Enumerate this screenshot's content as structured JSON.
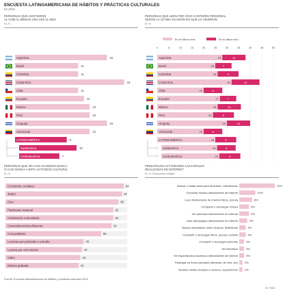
{
  "header": {
    "title": "ENCUESTA LATINOAMERICANA DE HÁBITOS Y PRÁCTICAS CULTURALES",
    "subtitle": "En 2013"
  },
  "colors": {
    "light_bar": "#efc3d1",
    "dark_bar": "#d72a6b",
    "track": "#f1f1f1",
    "text": "#444444"
  },
  "panel1": {
    "title_l1": "PERSONAS QUE ASISTIERON",
    "title_l2": "AL CINE AL MENOS UNA VEZ AL MES",
    "unit": "En %"
  },
  "panel2": {
    "title_l1": "PERSONAS QUE LEEN POR OCIO O INTERÉS PERSONAL,",
    "title_l2": "SEGÚN LA ÚLTIMA OCASIÓN EN QUE LO HICIERON",
    "unit": "En %",
    "legend_a": "En el último mes",
    "legend_b": "En el último año"
  },
  "panel3": {
    "title_l1": "PERSONAS QUE NO HAN ACCEDIDO NUNCA",
    "title_l2": "O CASI NUNCA A ESTA ACTIVIDAD CULTURAL",
    "unit": "En %"
  },
  "panel4": {
    "title_l1": "PRINCIPALES ACTIVIDADES CULTURALES",
    "title_l2": "REALIZADAS EN INTERNET",
    "unit": "En %. Respuesta múltiple"
  },
  "footer": {
    "source": "Fuente: Encuesta latinoamericana de hábitos y prácticas culturales 2013.",
    "credit": "EL PAÍS"
  },
  "chart_data": [
    {
      "type": "bar",
      "title": "PERSONAS QUE ASISTIERON AL CINE AL MENOS UNA VEZ AL MES",
      "unit": "En %",
      "categories": [
        "Argentina",
        "Brasil",
        "Colombia",
        "Costa Rica",
        "Chile",
        "Ecuador",
        "México",
        "Perú",
        "Uruguay",
        "Venezuela",
        "LATINOAMÉRICA",
        "Sudamérica",
        "Centroamérica"
      ],
      "values": [
        16,
        11,
        11,
        19,
        11,
        12,
        13,
        13,
        16,
        13,
        9,
        10,
        7
      ],
      "highlight": [
        "LATINOAMÉRICA",
        "Sudamérica",
        "Centroamérica"
      ],
      "xlim": [
        0,
        20
      ]
    },
    {
      "type": "bar",
      "stacked": true,
      "title": "PERSONAS QUE LEEN POR OCIO O INTERÉS PERSONAL, SEGÚN LA ÚLTIMA OCASIÓN EN QUE LO HICIERON",
      "unit": "En %",
      "categories": [
        "Argentina",
        "Brasil",
        "Colombia",
        "Costa Rica",
        "Chile",
        "Ecuador",
        "México",
        "Perú",
        "Uruguay",
        "Venezuela",
        "LATINOAMÉRICA",
        "Sudamérica",
        "Centroamérica"
      ],
      "ticks": [
        0,
        5,
        10,
        15,
        20,
        25,
        30,
        35,
        40,
        45,
        50
      ],
      "xlim": [
        0,
        50
      ],
      "series": [
        {
          "name": "En el último mes",
          "values": [
            28,
            25,
            26,
            32,
            20,
            27,
            26,
            24,
            30,
            20,
            25,
            24,
            25
          ]
        },
        {
          "name": "En el último año",
          "values": [
            10,
            7,
            9,
            12,
            8,
            7,
            10,
            9,
            10,
            8,
            9,
            8,
            9
          ]
        }
      ]
    },
    {
      "type": "bar",
      "title": "PERSONAS QUE NO HAN ACCEDIDO NUNCA O CASI NUNCA A ESTA ACTIVIDAD CULTURAL",
      "unit": "En %",
      "categories": [
        "Conciertos, recitales",
        "Teatro",
        "Cine",
        "Patrimonio material",
        "Celebración comunitaria",
        "Carnes/electrónico/internet",
        "Cost palabras",
        "Lecturas por profesión o estudio",
        "Lectura por ocio interés",
        "Video",
        "Música grabada"
      ],
      "values": [
        68,
        67,
        65,
        62,
        62,
        61,
        55,
        45,
        44,
        43,
        42
      ],
      "xlim": [
        0,
        70
      ]
    },
    {
      "type": "bar",
      "title": "PRINCIPALES ACTIVIDADES CULTURALES REALIZADAS EN INTERNET",
      "unit": "En %. Respuesta múltiple",
      "categories": [
        "Buscar o visitar webs para divertirse, entretenerse",
        "Escuchar música directamente de Internet",
        "Leer directamente de Internet libros, prensa",
        "Compartir o descargar música",
        "Ver películas directamente en Internet",
        "Usar videojuegos directamente en Internet",
        "Buscar información sobre museos, bibliotecas",
        "Compartir o descargar libros, prensa, revistas",
        "Compartir o descargar películas",
        "Ver televisión",
        "Ver espectáculos escénicos directamente de Internet",
        "Participar en foros culturales (literarios, de cine, etc)",
        "Realizar visitas virtuales a museos, exposiciones"
      ],
      "values": [
        22,
        10,
        8,
        6,
        6,
        5,
        4,
        4,
        3,
        3,
        3,
        2,
        2
      ],
      "xlim": [
        0,
        22
      ]
    }
  ]
}
